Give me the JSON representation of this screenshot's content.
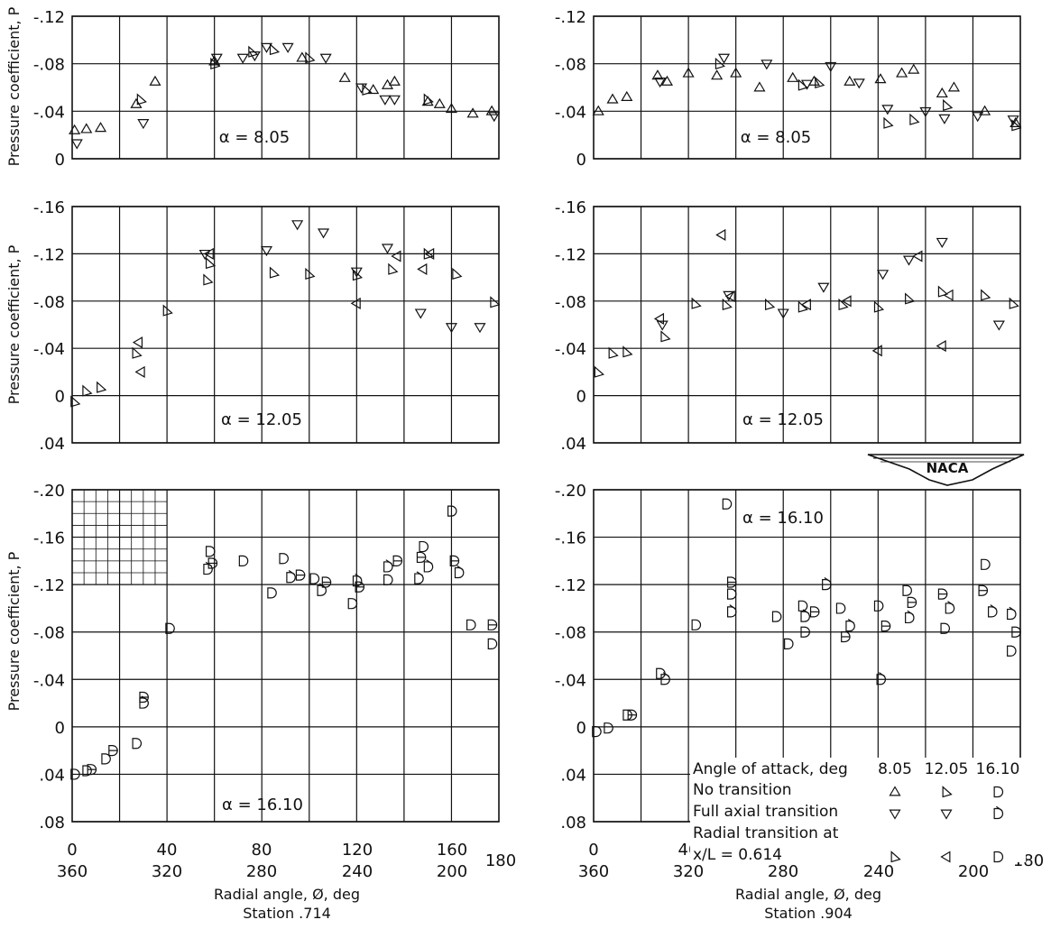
{
  "figure": {
    "ylabel": "Pressure coefficient, P",
    "xlabel": "Radial angle, Ø, deg",
    "x_ticks_top": [
      "0",
      "40",
      "80",
      "120",
      "160"
    ],
    "x_ticks_bottom": [
      "360",
      "320",
      "280",
      "240",
      "200"
    ],
    "x_tick_end": "180",
    "stations": [
      "Station .714",
      "Station .904"
    ],
    "logo": "NACA"
  },
  "legend": {
    "header": "Angle of attack, deg",
    "alphas": [
      "8.05",
      "12.05",
      "16.10"
    ],
    "rows": [
      {
        "label": "No transition",
        "marker": "no_transition"
      },
      {
        "label": "Full axial transition",
        "marker": "full_axial"
      },
      {
        "label": "Radial transition at",
        "marker": ""
      },
      {
        "label": "x/L = 0.614",
        "marker": "radial"
      }
    ]
  },
  "chart_data": [
    {
      "type": "scatter",
      "title": "α = 8.05",
      "station": "Station .714",
      "ylim": [
        0,
        -0.12
      ],
      "yticks": [
        0,
        -0.04,
        -0.08,
        -0.12
      ],
      "ytick_labels": [
        "0",
        "-.04",
        "-.08",
        "-.12"
      ],
      "xlim": [
        0,
        180
      ],
      "series": [
        {
          "marker": "tri-up",
          "points": [
            [
              1,
              -0.024
            ],
            [
              6,
              -0.025
            ],
            [
              12,
              -0.026
            ],
            [
              27,
              -0.046
            ],
            [
              35,
              -0.065
            ],
            [
              60,
              -0.082
            ],
            [
              97,
              -0.085
            ],
            [
              115,
              -0.068
            ],
            [
              127,
              -0.058
            ],
            [
              133,
              -0.062
            ],
            [
              136,
              -0.065
            ],
            [
              150,
              -0.048
            ],
            [
              155,
              -0.046
            ],
            [
              160,
              -0.042
            ],
            [
              169,
              -0.038
            ],
            [
              177,
              -0.04
            ]
          ]
        },
        {
          "marker": "tri-down",
          "points": [
            [
              2,
              -0.013
            ],
            [
              30,
              -0.03
            ],
            [
              61,
              -0.085
            ],
            [
              72,
              -0.085
            ],
            [
              77,
              -0.087
            ],
            [
              82,
              -0.094
            ],
            [
              91,
              -0.094
            ],
            [
              107,
              -0.085
            ],
            [
              122,
              -0.06
            ],
            [
              132,
              -0.05
            ],
            [
              136,
              -0.05
            ],
            [
              178,
              -0.036
            ]
          ]
        },
        {
          "marker": "tri-right",
          "points": [
            [
              29,
              -0.05
            ],
            [
              60,
              -0.08
            ],
            [
              76,
              -0.09
            ],
            [
              85,
              -0.092
            ],
            [
              100,
              -0.085
            ],
            [
              124,
              -0.058
            ],
            [
              150,
              -0.05
            ]
          ]
        }
      ]
    },
    {
      "type": "scatter",
      "title": "α = 8.05",
      "station": "Station .904",
      "ylim": [
        0,
        -0.12
      ],
      "yticks": [
        0,
        -0.04,
        -0.08,
        -0.12
      ],
      "ytick_labels": [
        "0",
        "-.04",
        "-.08",
        "-.12"
      ],
      "xlim": [
        0,
        180
      ],
      "series": [
        {
          "marker": "tri-up",
          "points": [
            [
              2,
              -0.04
            ],
            [
              8,
              -0.05
            ],
            [
              14,
              -0.052
            ],
            [
              27,
              -0.07
            ],
            [
              31,
              -0.065
            ],
            [
              40,
              -0.072
            ],
            [
              52,
              -0.07
            ],
            [
              60,
              -0.072
            ],
            [
              70,
              -0.06
            ],
            [
              84,
              -0.068
            ],
            [
              93,
              -0.065
            ],
            [
              108,
              -0.065
            ],
            [
              121,
              -0.067
            ],
            [
              130,
              -0.072
            ],
            [
              135,
              -0.075
            ],
            [
              147,
              -0.055
            ],
            [
              152,
              -0.06
            ],
            [
              165,
              -0.04
            ],
            [
              178,
              -0.03
            ]
          ]
        },
        {
          "marker": "tri-down",
          "points": [
            [
              28,
              -0.065
            ],
            [
              55,
              -0.085
            ],
            [
              73,
              -0.08
            ],
            [
              90,
              -0.063
            ],
            [
              100,
              -0.078
            ],
            [
              112,
              -0.064
            ],
            [
              124,
              -0.042
            ],
            [
              140,
              -0.04
            ],
            [
              148,
              -0.034
            ],
            [
              162,
              -0.036
            ],
            [
              177,
              -0.033
            ]
          ]
        },
        {
          "marker": "tri-right",
          "points": [
            [
              53,
              -0.08
            ],
            [
              88,
              -0.062
            ],
            [
              95,
              -0.064
            ],
            [
              124,
              -0.03
            ],
            [
              135,
              -0.033
            ],
            [
              149,
              -0.045
            ],
            [
              178,
              -0.028
            ]
          ]
        }
      ]
    },
    {
      "type": "scatter",
      "title": "α = 12.05",
      "station": "Station .714",
      "ylim": [
        0.04,
        -0.16
      ],
      "yticks": [
        0.04,
        0,
        -0.04,
        -0.08,
        -0.12,
        -0.16
      ],
      "ytick_labels": [
        ".04",
        "0",
        "-.04",
        "-.08",
        "-.12",
        "-.16"
      ],
      "xlim": [
        0,
        180
      ],
      "series": [
        {
          "marker": "tri-right",
          "points": [
            [
              1,
              0.005
            ],
            [
              6,
              -0.004
            ],
            [
              12,
              -0.007
            ],
            [
              27,
              -0.036
            ],
            [
              40,
              -0.072
            ],
            [
              57,
              -0.098
            ],
            [
              58,
              -0.112
            ],
            [
              85,
              -0.104
            ],
            [
              100,
              -0.103
            ],
            [
              120,
              -0.102
            ],
            [
              135,
              -0.107
            ],
            [
              150,
              -0.12
            ],
            [
              162,
              -0.103
            ],
            [
              178,
              -0.079
            ]
          ]
        },
        {
          "marker": "tri-down",
          "points": [
            [
              56,
              -0.12
            ],
            [
              82,
              -0.123
            ],
            [
              95,
              -0.145
            ],
            [
              106,
              -0.138
            ],
            [
              120,
              -0.105
            ],
            [
              133,
              -0.125
            ],
            [
              147,
              -0.07
            ],
            [
              160,
              -0.058
            ],
            [
              172,
              -0.058
            ]
          ]
        },
        {
          "marker": "tri-left",
          "points": [
            [
              28,
              -0.045
            ],
            [
              29,
              -0.02
            ],
            [
              58,
              -0.12
            ],
            [
              120,
              -0.078
            ],
            [
              137,
              -0.118
            ],
            [
              148,
              -0.107
            ],
            [
              151,
              -0.12
            ]
          ]
        }
      ]
    },
    {
      "type": "scatter",
      "title": "α = 12.05",
      "station": "Station .904",
      "ylim": [
        0.04,
        -0.16
      ],
      "yticks": [
        0.04,
        0,
        -0.04,
        -0.08,
        -0.12,
        -0.16
      ],
      "ytick_labels": [
        ".04",
        "0",
        "-.04",
        "-.08",
        "-.12",
        "-.16"
      ],
      "xlim": [
        0,
        180
      ],
      "series": [
        {
          "marker": "tri-right",
          "points": [
            [
              2,
              -0.02
            ],
            [
              8,
              -0.036
            ],
            [
              14,
              -0.037
            ],
            [
              30,
              -0.05
            ],
            [
              43,
              -0.078
            ],
            [
              56,
              -0.077
            ],
            [
              74,
              -0.077
            ],
            [
              88,
              -0.075
            ],
            [
              105,
              -0.077
            ],
            [
              120,
              -0.075
            ],
            [
              133,
              -0.082
            ],
            [
              147,
              -0.088
            ],
            [
              165,
              -0.085
            ],
            [
              177,
              -0.078
            ]
          ]
        },
        {
          "marker": "tri-down",
          "points": [
            [
              29,
              -0.06
            ],
            [
              57,
              -0.085
            ],
            [
              80,
              -0.07
            ],
            [
              97,
              -0.092
            ],
            [
              122,
              -0.103
            ],
            [
              133,
              -0.115
            ],
            [
              147,
              -0.13
            ],
            [
              171,
              -0.06
            ]
          ]
        },
        {
          "marker": "tri-left",
          "points": [
            [
              28,
              -0.065
            ],
            [
              54,
              -0.136
            ],
            [
              58,
              -0.084
            ],
            [
              90,
              -0.077
            ],
            [
              107,
              -0.08
            ],
            [
              120,
              -0.038
            ],
            [
              137,
              -0.118
            ],
            [
              147,
              -0.042
            ],
            [
              150,
              -0.085
            ]
          ]
        }
      ]
    },
    {
      "type": "scatter",
      "title": "α = 16.10",
      "station": "Station .714",
      "ylim": [
        0.08,
        -0.2
      ],
      "yticks": [
        0.08,
        0.04,
        0,
        -0.04,
        -0.08,
        -0.12,
        -0.16,
        -0.2
      ],
      "ytick_labels": [
        ".08",
        ".04",
        "0",
        "-.04",
        "-.08",
        "-.12",
        "-.16",
        "-.20"
      ],
      "xlim": [
        0,
        180
      ],
      "series": [
        {
          "marker": "d-open",
          "points": [
            [
              1,
              0.04
            ],
            [
              6,
              0.037
            ],
            [
              14,
              0.027
            ],
            [
              27,
              0.014
            ],
            [
              41,
              -0.083
            ],
            [
              58,
              -0.148
            ],
            [
              72,
              -0.14
            ],
            [
              84,
              -0.113
            ],
            [
              89,
              -0.142
            ],
            [
              102,
              -0.125
            ],
            [
              118,
              -0.104
            ],
            [
              133,
              -0.124
            ],
            [
              148,
              -0.152
            ],
            [
              160,
              -0.182
            ],
            [
              168,
              -0.086
            ],
            [
              177,
              -0.07
            ]
          ]
        },
        {
          "marker": "d-cup",
          "points": [
            [
              30,
              -0.02
            ],
            [
              57,
              -0.133
            ],
            [
              92,
              -0.126
            ],
            [
              105,
              -0.115
            ],
            [
              120,
              -0.123
            ],
            [
              133,
              -0.135
            ],
            [
              146,
              -0.125
            ],
            [
              150,
              -0.135
            ],
            [
              163,
              -0.13
            ]
          ]
        },
        {
          "marker": "d-bar",
          "points": [
            [
              8,
              0.036
            ],
            [
              17,
              0.02
            ],
            [
              30,
              -0.025
            ],
            [
              59,
              -0.138
            ],
            [
              96,
              -0.128
            ],
            [
              107,
              -0.122
            ],
            [
              121,
              -0.118
            ],
            [
              137,
              -0.14
            ],
            [
              147,
              -0.143
            ],
            [
              161,
              -0.14
            ],
            [
              177,
              -0.086
            ]
          ]
        }
      ]
    },
    {
      "type": "scatter",
      "title": "α = 16.10",
      "station": "Station .904",
      "ylim": [
        0.08,
        -0.2
      ],
      "yticks": [
        0.08,
        0.04,
        0,
        -0.04,
        -0.08,
        -0.12,
        -0.16,
        -0.2
      ],
      "ytick_labels": [
        ".08",
        ".04",
        "0",
        "-.04",
        "-.08",
        "-.12",
        "-.16",
        "-.20"
      ],
      "xlim": [
        0,
        180
      ],
      "series": [
        {
          "marker": "d-open",
          "points": [
            [
              1,
              0.004
            ],
            [
              6,
              0.001
            ],
            [
              14,
              -0.01
            ],
            [
              28,
              -0.045
            ],
            [
              43,
              -0.086
            ],
            [
              56,
              -0.188
            ],
            [
              58,
              -0.112
            ],
            [
              77,
              -0.093
            ],
            [
              82,
              -0.07
            ],
            [
              88,
              -0.102
            ],
            [
              104,
              -0.1
            ],
            [
              120,
              -0.102
            ],
            [
              132,
              -0.115
            ],
            [
              148,
              -0.083
            ],
            [
              165,
              -0.137
            ],
            [
              176,
              -0.064
            ]
          ]
        },
        {
          "marker": "d-cup",
          "points": [
            [
              30,
              -0.04
            ],
            [
              58,
              -0.097
            ],
            [
              89,
              -0.093
            ],
            [
              98,
              -0.12
            ],
            [
              108,
              -0.085
            ],
            [
              121,
              -0.04
            ],
            [
              133,
              -0.092
            ],
            [
              150,
              -0.1
            ],
            [
              168,
              -0.097
            ],
            [
              176,
              -0.095
            ]
          ]
        },
        {
          "marker": "d-bar",
          "points": [
            [
              16,
              -0.01
            ],
            [
              58,
              -0.122
            ],
            [
              89,
              -0.08
            ],
            [
              93,
              -0.097
            ],
            [
              106,
              -0.076
            ],
            [
              123,
              -0.085
            ],
            [
              134,
              -0.105
            ],
            [
              147,
              -0.112
            ],
            [
              164,
              -0.115
            ],
            [
              178,
              -0.08
            ]
          ]
        }
      ]
    }
  ],
  "alpha_labels": [
    "α = 8.05",
    "α = 8.05",
    "α = 12.05",
    "α = 12.05",
    "α = 16.10",
    "α = 16.10"
  ]
}
